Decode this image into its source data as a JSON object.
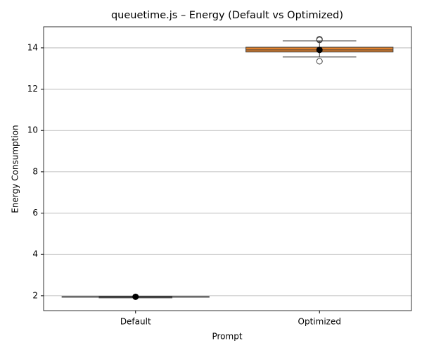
{
  "chart_data": {
    "type": "box",
    "title": "queuetime.js – Energy (Default vs Optimized)",
    "x_label": "Prompt",
    "y_label": "Energy Consumption",
    "categories": [
      "Default",
      "Optimized"
    ],
    "boxes": [
      {
        "color": "#3274a1",
        "whisker_low": 1.9,
        "q1": 1.93,
        "median": 1.95,
        "q3": 1.96,
        "whisker_high": 1.98,
        "mean": 1.95,
        "outliers": []
      },
      {
        "color": "#e1812c",
        "whisker_low": 13.56,
        "q1": 13.8,
        "median": 13.9,
        "q3": 14.03,
        "whisker_high": 14.34,
        "mean": 13.9,
        "outliers": [
          14.38,
          14.42,
          13.35
        ]
      }
    ],
    "ylim": [
      1.28,
      15.02
    ],
    "yticks": [
      2,
      4,
      6,
      8,
      10,
      12,
      14
    ],
    "grid": true
  }
}
